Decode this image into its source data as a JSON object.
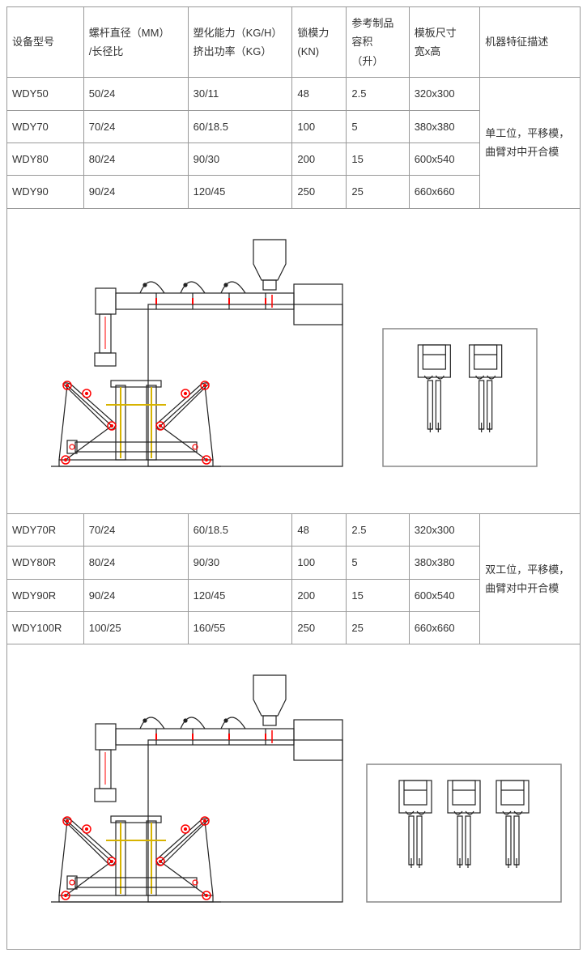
{
  "headers": {
    "model": "设备型号",
    "screw": "螺杆直径（MM）\n/长径比",
    "plast": "塑化能力（KG/H）\n挤出功率（KG）",
    "clamp": "锁模力\n(KN)",
    "volume": "参考制品\n容积\n（升）",
    "plate": "模板尺寸\n宽x高",
    "desc": "机器特征描述"
  },
  "section1": {
    "desc": "单工位，平移模，曲臂对中开合模",
    "rows": [
      {
        "model": "WDY50",
        "screw": "50/24",
        "plast": "30/11",
        "clamp": "48",
        "volume": "2.5",
        "plate": "320x300"
      },
      {
        "model": "WDY70",
        "screw": "70/24",
        "plast": "60/18.5",
        "clamp": "100",
        "volume": "5",
        "plate": "380x380"
      },
      {
        "model": "WDY80",
        "screw": "80/24",
        "plast": "90/30",
        "clamp": "200",
        "volume": "15",
        "plate": "600x540"
      },
      {
        "model": "WDY90",
        "screw": "90/24",
        "plast": "120/45",
        "clamp": "250",
        "volume": "25",
        "plate": "660x660"
      }
    ]
  },
  "section2": {
    "desc": "双工位，平移模，曲臂对中开合模",
    "rows": [
      {
        "model": "WDY70R",
        "screw": "70/24",
        "plast": "60/18.5",
        "clamp": "48",
        "volume": "2.5",
        "plate": "320x300"
      },
      {
        "model": "WDY80R",
        "screw": "80/24",
        "plast": "90/30",
        "clamp": "100",
        "volume": "5",
        "plate": "380x380"
      },
      {
        "model": "WDY90R",
        "screw": "90/24",
        "plast": "120/45",
        "clamp": "200",
        "volume": "15",
        "plate": "600x540"
      },
      {
        "model": "WDY100R",
        "screw": "100/25",
        "plast": "160/55",
        "clamp": "250",
        "volume": "25",
        "plate": "660x660"
      }
    ]
  },
  "diagram": {
    "stroke": "#222222",
    "accent": "#ff0000",
    "guide": "#d7b300",
    "mold_box_stroke": "#888888"
  }
}
